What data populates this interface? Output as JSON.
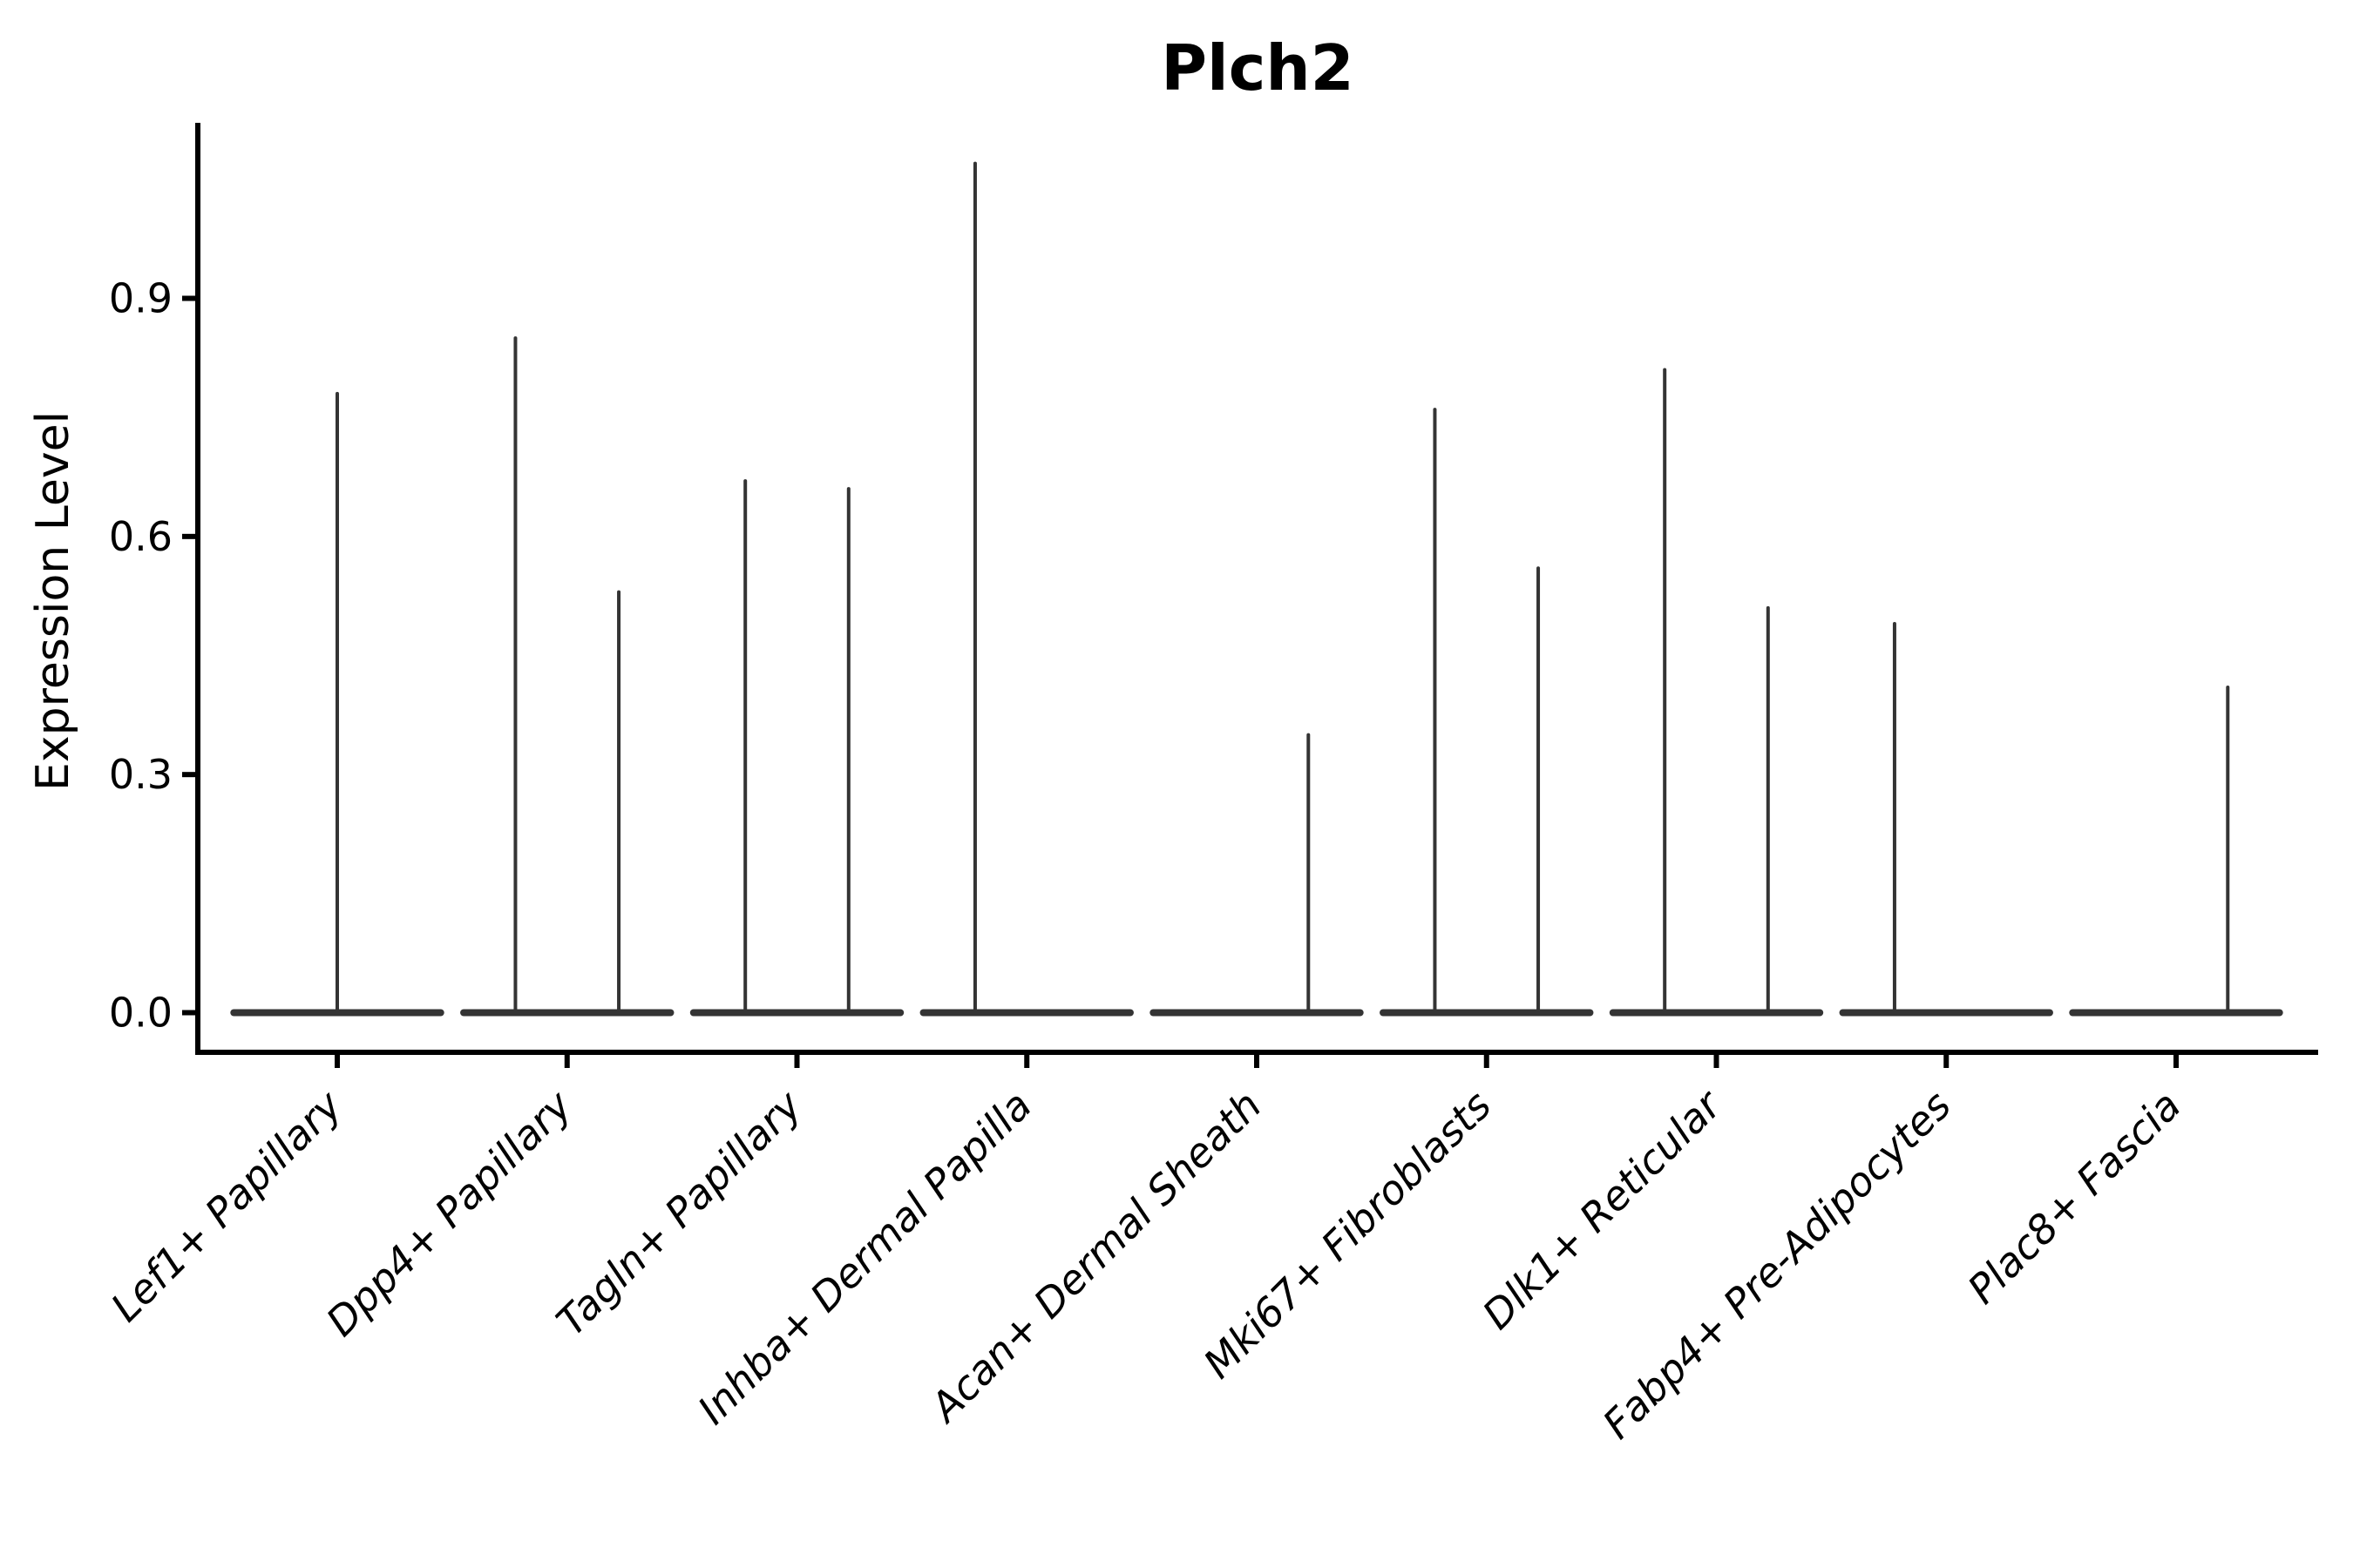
{
  "chart_data": {
    "type": "violin",
    "title": "Plch2",
    "ylabel": "Expression Level",
    "xlabel": "",
    "yticks": [
      0.0,
      0.3,
      0.6,
      0.9
    ],
    "ytick_labels": [
      "0.0",
      "0.3",
      "0.6",
      "0.9"
    ],
    "ylim": [
      -0.05,
      1.12
    ],
    "x_label_rotation_deg": 45,
    "grid": false,
    "legend": "none",
    "description": "Needle-thin violins: bulk of cells at 0 expression (flat base line spanning each category), with a thin density spike rising to the maximum expression value. Categories with two spikes contain two dodged violins (left/right groups); max 0 means that group's violin is completely flat.",
    "categories": [
      {
        "label": "Lef1+ Papillary",
        "violins": [
          {
            "side": "full",
            "max": 0.78
          }
        ]
      },
      {
        "label": "Dpp4+ Papillary",
        "violins": [
          {
            "side": "left",
            "max": 0.85
          },
          {
            "side": "right",
            "max": 0.53
          }
        ]
      },
      {
        "label": "Tagln+ Papillary",
        "violins": [
          {
            "side": "left",
            "max": 0.67
          },
          {
            "side": "right",
            "max": 0.66
          }
        ]
      },
      {
        "label": "Inhba+ Dermal Papilla",
        "violins": [
          {
            "side": "left",
            "max": 1.07
          },
          {
            "side": "right",
            "max": 0.0
          }
        ]
      },
      {
        "label": "Acan+ Dermal Sheath",
        "violins": [
          {
            "side": "left",
            "max": 0.0
          },
          {
            "side": "right",
            "max": 0.35
          }
        ]
      },
      {
        "label": "Mki67+ Fibroblasts",
        "violins": [
          {
            "side": "left",
            "max": 0.76
          },
          {
            "side": "right",
            "max": 0.56
          }
        ]
      },
      {
        "label": "Dlk1+ Reticular",
        "violins": [
          {
            "side": "left",
            "max": 0.81
          },
          {
            "side": "right",
            "max": 0.51
          }
        ]
      },
      {
        "label": "Fabp4+ Pre-Adipocytes",
        "violins": [
          {
            "side": "left",
            "max": 0.49
          },
          {
            "side": "right",
            "max": 0.0
          }
        ]
      },
      {
        "label": "Plac8+ Fascia",
        "violins": [
          {
            "side": "left",
            "max": 0.0
          },
          {
            "side": "right",
            "max": 0.41
          }
        ]
      }
    ],
    "colors": {
      "violin": "#343434",
      "axis": "#000000",
      "text": "#000000",
      "background": "#ffffff"
    }
  }
}
